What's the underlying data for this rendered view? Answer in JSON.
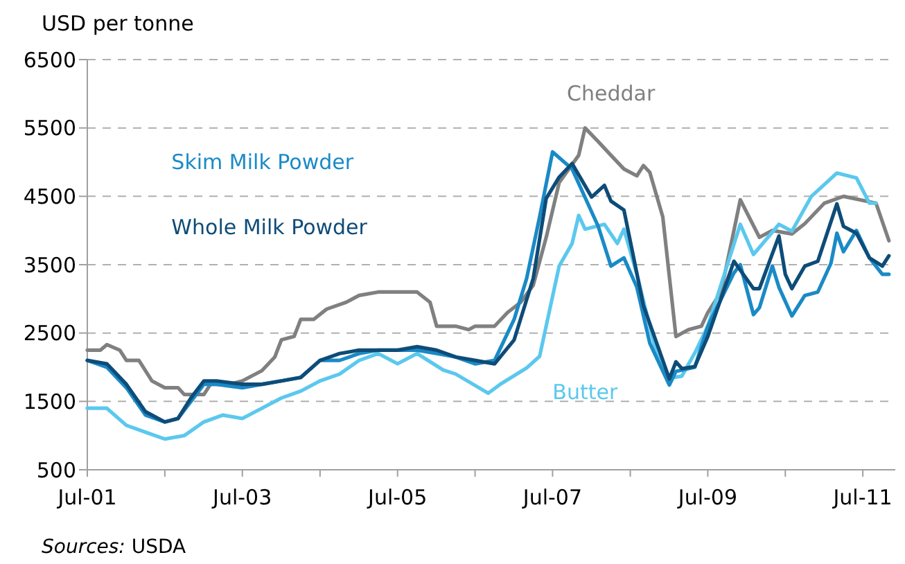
{
  "chart_data": {
    "type": "line",
    "ylabel": "USD per tonne",
    "annotations": [
      "Sources: USDA"
    ],
    "xlim": [
      "2001-07",
      "2011-12"
    ],
    "xticks": [
      {
        "value": "2001-07",
        "label": "Jul-01"
      },
      {
        "value": "2002-07",
        "label": null
      },
      {
        "value": "2003-07",
        "label": "Jul-03"
      },
      {
        "value": "2004-07",
        "label": null
      },
      {
        "value": "2005-07",
        "label": "Jul-05"
      },
      {
        "value": "2006-07",
        "label": null
      },
      {
        "value": "2007-07",
        "label": "Jul-07"
      },
      {
        "value": "2008-07",
        "label": null
      },
      {
        "value": "2009-07",
        "label": "Jul-09"
      },
      {
        "value": "2010-07",
        "label": null
      },
      {
        "value": "2011-07",
        "label": "Jul-11"
      }
    ],
    "ylim": [
      500,
      6500
    ],
    "yticks": [
      500,
      1500,
      2500,
      3500,
      4500,
      5500,
      6500
    ],
    "grid": "y",
    "legend": false,
    "marker": "none",
    "line_style": "solid",
    "series": [
      {
        "name": "Cheddar",
        "color": "#808080",
        "x": [
          "2001-07",
          "2001-09",
          "2001-10",
          "2001-12",
          "2002-01",
          "2002-03",
          "2002-05",
          "2002-07",
          "2002-09",
          "2002-10",
          "2003-01",
          "2003-02",
          "2003-05",
          "2003-07",
          "2003-10",
          "2003-12",
          "2004-01",
          "2004-03",
          "2004-04",
          "2004-06",
          "2004-08",
          "2004-11",
          "2005-01",
          "2005-04",
          "2005-07",
          "2005-10",
          "2005-12",
          "2006-01",
          "2006-04",
          "2006-06",
          "2006-07",
          "2006-10",
          "2006-12",
          "2007-02",
          "2007-04",
          "2007-06",
          "2007-08",
          "2007-11",
          "2007-12",
          "2008-02",
          "2008-04",
          "2008-06",
          "2008-08",
          "2008-09",
          "2008-10",
          "2008-12",
          "2009-02",
          "2009-04",
          "2009-06",
          "2009-07",
          "2009-09",
          "2009-11",
          "2009-12",
          "2010-03",
          "2010-05",
          "2010-08",
          "2010-10",
          "2011-01",
          "2011-04",
          "2011-09",
          "2011-11"
        ],
        "values": [
          2250,
          2250,
          2330,
          2250,
          2100,
          2100,
          1800,
          1700,
          1700,
          1600,
          1600,
          1750,
          1750,
          1800,
          1950,
          2150,
          2400,
          2450,
          2700,
          2700,
          2850,
          2950,
          3050,
          3100,
          3100,
          3100,
          2950,
          2600,
          2600,
          2550,
          2600,
          2600,
          2800,
          2950,
          3200,
          3900,
          4700,
          5100,
          5500,
          5300,
          5100,
          4900,
          4800,
          4950,
          4850,
          4200,
          2450,
          2550,
          2600,
          2800,
          3100,
          4000,
          4450,
          3900,
          4000,
          3950,
          4100,
          4400,
          4500,
          4400,
          3850
        ]
      },
      {
        "name": "Butter",
        "color": "#5bc8ee",
        "x": [
          "2001-07",
          "2001-10",
          "2002-01",
          "2002-04",
          "2002-07",
          "2002-10",
          "2003-01",
          "2003-04",
          "2003-07",
          "2003-10",
          "2004-01",
          "2004-04",
          "2004-07",
          "2004-10",
          "2005-01",
          "2005-04",
          "2005-07",
          "2005-10",
          "2006-02",
          "2006-04",
          "2006-09",
          "2006-11",
          "2007-03",
          "2007-05",
          "2007-08",
          "2007-10",
          "2007-11",
          "2007-12",
          "2008-03",
          "2008-05",
          "2008-06",
          "2008-08",
          "2008-11",
          "2009-01",
          "2009-03",
          "2009-05",
          "2009-07",
          "2009-12",
          "2010-02",
          "2010-06",
          "2010-08",
          "2010-11",
          "2011-03",
          "2011-06",
          "2011-08",
          "2011-09"
        ],
        "values": [
          1400,
          1400,
          1150,
          1050,
          950,
          1000,
          1200,
          1300,
          1250,
          1400,
          1550,
          1650,
          1800,
          1900,
          2100,
          2200,
          2050,
          2200,
          1960,
          1900,
          1620,
          1760,
          1990,
          2160,
          3480,
          3810,
          4220,
          4020,
          4090,
          3810,
          4020,
          3360,
          2210,
          1840,
          1870,
          2210,
          2600,
          4090,
          3650,
          4090,
          3990,
          4500,
          4840,
          4770,
          4400,
          4400
        ]
      },
      {
        "name": "Skim Milk Powder",
        "color": "#1a8ac6",
        "x": [
          "2001-07",
          "2001-10",
          "2002-01",
          "2002-04",
          "2002-07",
          "2002-09",
          "2002-11",
          "2003-01",
          "2003-03",
          "2003-07",
          "2003-10",
          "2004-01",
          "2004-04",
          "2004-07",
          "2004-10",
          "2005-01",
          "2005-04",
          "2005-07",
          "2005-10",
          "2006-01",
          "2006-04",
          "2006-07",
          "2006-10",
          "2007-01",
          "2007-03",
          "2007-05",
          "2007-07",
          "2007-10",
          "2008-02",
          "2008-04",
          "2008-06",
          "2008-08",
          "2008-10",
          "2009-01",
          "2009-02",
          "2009-05",
          "2009-07",
          "2009-11",
          "2009-12",
          "2010-02",
          "2010-03",
          "2010-05",
          "2010-06",
          "2010-08",
          "2010-10",
          "2010-12",
          "2011-02",
          "2011-03",
          "2011-04",
          "2011-06",
          "2011-08",
          "2011-10",
          "2011-11"
        ],
        "values": [
          2100,
          2000,
          1700,
          1300,
          1200,
          1250,
          1500,
          1750,
          1750,
          1700,
          1750,
          1800,
          1850,
          2100,
          2100,
          2200,
          2250,
          2250,
          2250,
          2200,
          2150,
          2050,
          2100,
          2700,
          3300,
          4200,
          5150,
          4900,
          4060,
          3480,
          3600,
          3170,
          2350,
          1740,
          1940,
          2000,
          2600,
          3380,
          3500,
          2770,
          2870,
          3480,
          3170,
          2750,
          3050,
          3100,
          3520,
          3960,
          3690,
          4000,
          3600,
          3360,
          3360
        ]
      },
      {
        "name": "Whole Milk Powder",
        "color": "#0e4c78",
        "x": [
          "2001-07",
          "2001-10",
          "2002-01",
          "2002-04",
          "2002-07",
          "2002-09",
          "2002-11",
          "2003-01",
          "2003-03",
          "2003-07",
          "2003-10",
          "2004-01",
          "2004-04",
          "2004-07",
          "2004-10",
          "2005-01",
          "2005-04",
          "2005-07",
          "2005-10",
          "2006-01",
          "2006-04",
          "2006-07",
          "2006-10",
          "2007-01",
          "2007-04",
          "2007-06",
          "2007-08",
          "2007-10",
          "2008-01",
          "2008-03",
          "2008-04",
          "2008-06",
          "2008-09",
          "2009-01",
          "2009-02",
          "2009-03",
          "2009-05",
          "2009-07",
          "2009-11",
          "2010-02",
          "2010-03",
          "2010-06",
          "2010-07",
          "2010-08",
          "2010-10",
          "2010-12",
          "2011-03",
          "2011-04",
          "2011-06",
          "2011-08",
          "2011-10",
          "2011-11"
        ],
        "values": [
          2100,
          2050,
          1750,
          1350,
          1200,
          1250,
          1550,
          1800,
          1800,
          1750,
          1750,
          1800,
          1850,
          2100,
          2200,
          2250,
          2250,
          2250,
          2300,
          2250,
          2150,
          2100,
          2050,
          2400,
          3300,
          4470,
          4780,
          4980,
          4490,
          4660,
          4430,
          4300,
          2900,
          1830,
          2080,
          1980,
          2010,
          2450,
          3550,
          3150,
          3150,
          3920,
          3360,
          3150,
          3480,
          3550,
          4390,
          4060,
          3960,
          3600,
          3480,
          3630
        ]
      }
    ]
  }
}
